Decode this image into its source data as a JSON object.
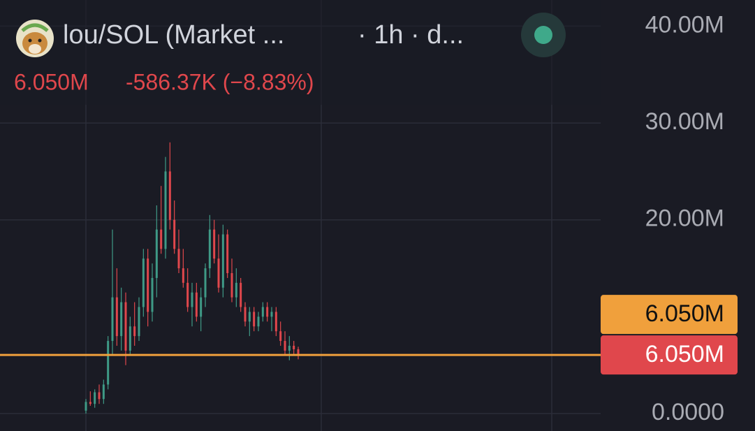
{
  "chart_data": {
    "type": "candlestick",
    "header": {
      "symbol": "lou/SOL (Market ...",
      "interval": "· 1h · d...",
      "price": "6.050M",
      "change": "-586.37K (−8.83%)"
    },
    "up_color": "#3f9a86",
    "down_color": "#e0474c",
    "ylim": [
      -1800000,
      42700000
    ],
    "yticks": [
      {
        "value": 0,
        "label": "0.0000"
      },
      {
        "value": 20000000,
        "label": "20.00M"
      },
      {
        "value": 30000000,
        "label": "30.00M"
      },
      {
        "value": 40000000,
        "label": "40.00M"
      }
    ],
    "grid": true,
    "price_markers": [
      {
        "value": 6050000,
        "label": "6.050M",
        "color": "#f0a03c"
      },
      {
        "value": 6050000,
        "label": "6.050M",
        "color": "#e0474c"
      }
    ],
    "candles": {
      "open": [
        300000,
        1200000,
        1000000,
        2200000,
        1500000,
        3000000,
        7500000,
        12000000,
        8000000,
        11500000,
        6500000,
        9000000,
        8000000,
        11000000,
        16000000,
        10500000,
        14000000,
        19000000,
        17000000,
        25000000,
        20000000,
        17000000,
        15000000,
        13500000,
        11000000,
        12500000,
        10000000,
        12000000,
        15000000,
        19000000,
        16000000,
        13000000,
        18500000,
        14500000,
        12000000,
        13500000,
        11000000,
        9500000,
        10500000,
        9000000,
        10000000,
        11000000,
        10000000,
        10500000,
        8500000,
        7500000,
        6500000,
        7000000,
        6640000
      ],
      "high": [
        1500000,
        2300000,
        2500000,
        3000000,
        3500000,
        8000000,
        19000000,
        15000000,
        13000000,
        12500000,
        10000000,
        11500000,
        12000000,
        17000000,
        17000000,
        15500000,
        21500000,
        23500000,
        26500000,
        28000000,
        22000000,
        19000000,
        17000000,
        15000000,
        13500000,
        13500000,
        13000000,
        15500000,
        20500000,
        20000000,
        18500000,
        19500000,
        19000000,
        16000000,
        15000000,
        14000000,
        11500000,
        11000000,
        11000000,
        10500000,
        11500000,
        11500000,
        11000000,
        11000000,
        9500000,
        8500000,
        8000000,
        7500000,
        6900000
      ],
      "low": [
        0,
        800000,
        600000,
        1000000,
        1000000,
        2500000,
        6000000,
        7000000,
        6500000,
        5000000,
        6000000,
        7000000,
        7500000,
        10000000,
        9000000,
        9500000,
        12000000,
        16500000,
        16000000,
        19000000,
        16500000,
        14500000,
        13000000,
        10500000,
        9000000,
        9500000,
        8500000,
        11000000,
        14000000,
        15500000,
        12500000,
        12000000,
        14000000,
        11500000,
        11000000,
        10500000,
        9000000,
        8000000,
        8500000,
        8500000,
        9500000,
        9500000,
        8500000,
        8000000,
        7000000,
        6000000,
        5500000,
        6000000,
        5600000
      ],
      "close": [
        1200000,
        1000000,
        2200000,
        1500000,
        3000000,
        7500000,
        12000000,
        8000000,
        11500000,
        6500000,
        9000000,
        8000000,
        11000000,
        16000000,
        10500000,
        14000000,
        19000000,
        17000000,
        25000000,
        20000000,
        17000000,
        15000000,
        13500000,
        11000000,
        12500000,
        10000000,
        12000000,
        15000000,
        19000000,
        16000000,
        13000000,
        18500000,
        14500000,
        12000000,
        13500000,
        11000000,
        9500000,
        10500000,
        9000000,
        10000000,
        11000000,
        10000000,
        10500000,
        8500000,
        7500000,
        6500000,
        7000000,
        6640000,
        6050000
      ]
    }
  }
}
